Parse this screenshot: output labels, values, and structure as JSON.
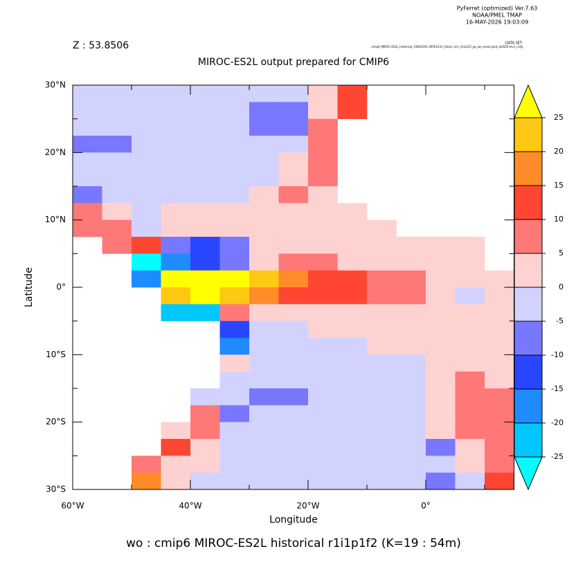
{
  "chart_data": {
    "type": "heatmap",
    "header": [
      "PyFerret (optimized) Ver.7.63",
      "NOAA/PMEL TMAP",
      "16-MAY-2026 19:03:09"
    ],
    "z_label": "Z : 53.8506",
    "dataset_label": "DATA SET:",
    "dataset": "cmip6_MIROC-ES2L_historical_19850101-20051231_Omon_1m_r1i1p1f2_gn_wo_mean.grid_at2025-lev1_cnfg",
    "title": "MIROC-ES2L output prepared for CMIP6",
    "x_label": "Longitude",
    "y_label": "Latitude",
    "footer": "wo : cmip6 MIROC-ES2L historical r1i1p1f2   (K=19 : 54m)",
    "xlim": [
      -60,
      15
    ],
    "ylim": [
      -30,
      30
    ],
    "xticks": [
      {
        "value": -60,
        "label": "60°W"
      },
      {
        "value": -40,
        "label": "40°W"
      },
      {
        "value": -20,
        "label": "20°W"
      },
      {
        "value": 0,
        "label": "0°"
      }
    ],
    "xminor": [
      -50,
      -30,
      -10,
      10
    ],
    "yticks": [
      {
        "value": 30,
        "label": "30°N"
      },
      {
        "value": 20,
        "label": "20°N"
      },
      {
        "value": 10,
        "label": "10°N"
      },
      {
        "value": 0,
        "label": "0°"
      },
      {
        "value": -10,
        "label": "10°S"
      },
      {
        "value": -20,
        "label": "20°S"
      },
      {
        "value": -30,
        "label": "30°S"
      }
    ],
    "yminor": [
      25,
      15,
      5,
      -5,
      -15,
      -25
    ],
    "levels": [
      -25,
      -20,
      -15,
      -10,
      -5,
      0,
      5,
      10,
      15,
      20,
      25
    ],
    "colors": [
      "#00ffff",
      "#00c8ff",
      "#1e8cff",
      "#2846ff",
      "#7878ff",
      "#d2d2ff",
      "#ffd2d2",
      "#ff7878",
      "#ff4632",
      "#ff8c28",
      "#ffc814",
      "#ffff00"
    ],
    "x": [
      -57.5,
      -52.5,
      -47.5,
      -42.5,
      -37.5,
      -32.5,
      -27.5,
      -22.5,
      -17.5,
      -12.5,
      -7.5,
      -2.5,
      2.5,
      7.5,
      12.5
    ],
    "y": [
      28.75,
      26.25,
      23.75,
      21.25,
      18.75,
      16.25,
      13.75,
      11.25,
      8.75,
      6.25,
      3.75,
      1.25,
      -1.25,
      -3.75,
      -6.25,
      -8.75,
      -11.25,
      -13.75,
      -16.25,
      -18.75,
      -21.25,
      -23.75,
      -26.25,
      -28.75
    ],
    "z": [
      [
        -2,
        -2,
        -2,
        -2,
        -2,
        -2,
        -2,
        -2,
        2,
        12,
        null,
        null,
        null,
        null,
        null
      ],
      [
        -2,
        -2,
        -2,
        -2,
        -2,
        -2,
        -7,
        -7,
        2,
        10,
        null,
        null,
        null,
        null,
        null
      ],
      [
        -2,
        -2,
        -2,
        -2,
        -2,
        -2,
        -7,
        -7,
        7,
        null,
        null,
        null,
        null,
        null,
        null
      ],
      [
        -7,
        -7,
        -2,
        -2,
        -2,
        -2,
        -2,
        -2,
        7,
        null,
        null,
        null,
        null,
        null,
        null
      ],
      [
        -2,
        -2,
        -2,
        -2,
        -2,
        -2,
        -2,
        2,
        7,
        null,
        null,
        null,
        null,
        null,
        null
      ],
      [
        -2,
        -2,
        -2,
        -2,
        -2,
        -2,
        -2,
        2,
        7,
        null,
        null,
        null,
        null,
        null,
        null
      ],
      [
        -7,
        -2,
        -2,
        -2,
        -2,
        -2,
        2,
        7,
        2,
        null,
        null,
        null,
        null,
        null,
        null
      ],
      [
        7,
        2,
        -2,
        2,
        2,
        2,
        2,
        2,
        2,
        2,
        null,
        null,
        null,
        null,
        null
      ],
      [
        7,
        7,
        -2,
        2,
        2,
        2,
        2,
        2,
        2,
        2,
        2,
        null,
        null,
        null,
        null
      ],
      [
        null,
        7,
        12,
        -7,
        -12,
        -7,
        2,
        2,
        2,
        2,
        2,
        2,
        2,
        2,
        null
      ],
      [
        null,
        null,
        -27,
        -17,
        -12,
        -7,
        2,
        7,
        7,
        2,
        2,
        2,
        2,
        2,
        null
      ],
      [
        null,
        null,
        -17,
        30,
        30,
        30,
        22,
        17,
        12,
        12,
        7,
        7,
        2,
        2,
        2
      ],
      [
        null,
        null,
        null,
        22,
        30,
        22,
        17,
        12,
        12,
        12,
        7,
        7,
        2,
        -2,
        2
      ],
      [
        null,
        null,
        null,
        -22,
        -22,
        7,
        2,
        2,
        2,
        2,
        2,
        2,
        2,
        2,
        2
      ],
      [
        null,
        null,
        null,
        null,
        null,
        -12,
        -2,
        -2,
        2,
        2,
        2,
        2,
        2,
        2,
        2
      ],
      [
        null,
        null,
        null,
        null,
        null,
        -17,
        -2,
        -2,
        -2,
        -2,
        2,
        2,
        2,
        2,
        2
      ],
      [
        null,
        null,
        null,
        null,
        null,
        2,
        -2,
        -2,
        -2,
        -2,
        -2,
        -2,
        2,
        2,
        2
      ],
      [
        null,
        null,
        null,
        null,
        null,
        -2,
        -2,
        -2,
        -2,
        -2,
        -2,
        -2,
        2,
        7,
        2
      ],
      [
        null,
        null,
        null,
        null,
        -2,
        -2,
        -7,
        -7,
        -2,
        -2,
        -2,
        -2,
        2,
        7,
        7
      ],
      [
        null,
        null,
        null,
        null,
        7,
        -7,
        -2,
        -2,
        -2,
        -2,
        -2,
        -2,
        2,
        7,
        7
      ],
      [
        null,
        null,
        null,
        2,
        7,
        -2,
        -2,
        -2,
        -2,
        -2,
        -2,
        -2,
        2,
        7,
        7
      ],
      [
        null,
        null,
        null,
        12,
        2,
        -2,
        -2,
        -2,
        -2,
        -2,
        -2,
        -2,
        -7,
        2,
        7
      ],
      [
        null,
        null,
        7,
        2,
        2,
        -2,
        -2,
        -2,
        -2,
        -2,
        -2,
        -2,
        -2,
        2,
        7
      ],
      [
        null,
        null,
        17,
        2,
        -2,
        -2,
        -2,
        -2,
        -2,
        -2,
        -2,
        -2,
        -7,
        -2,
        12
      ]
    ]
  }
}
